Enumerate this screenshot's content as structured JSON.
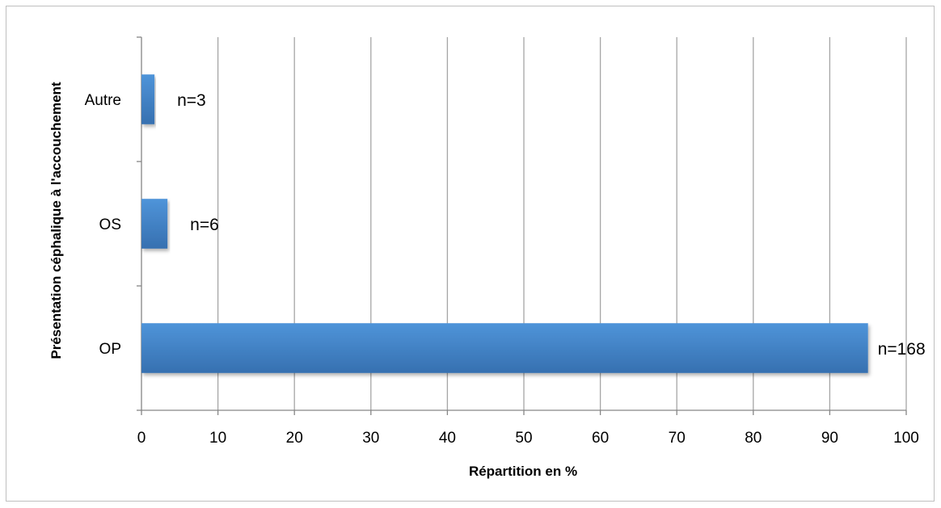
{
  "chart_data": {
    "type": "bar",
    "orientation": "horizontal",
    "categories": [
      "OP",
      "OS",
      "Autre"
    ],
    "series": [
      {
        "values": [
          95,
          3.4,
          1.7
        ],
        "labels": [
          "n=168",
          "n=6",
          "n=3"
        ]
      }
    ],
    "xlabel": "Répartition en %",
    "ylabel": "Présentation céphalique à l'accouchement",
    "xlim": [
      0,
      100
    ],
    "xticks": [
      "0",
      "10",
      "20",
      "30",
      "40",
      "50",
      "60",
      "70",
      "80",
      "90",
      "100"
    ],
    "grid": "vertical",
    "legend": "none",
    "colors": {
      "bar_top": "#4f94d9",
      "bar_bottom": "#3670b0",
      "grid": "#a6a6a6",
      "axis": "#868686"
    }
  }
}
